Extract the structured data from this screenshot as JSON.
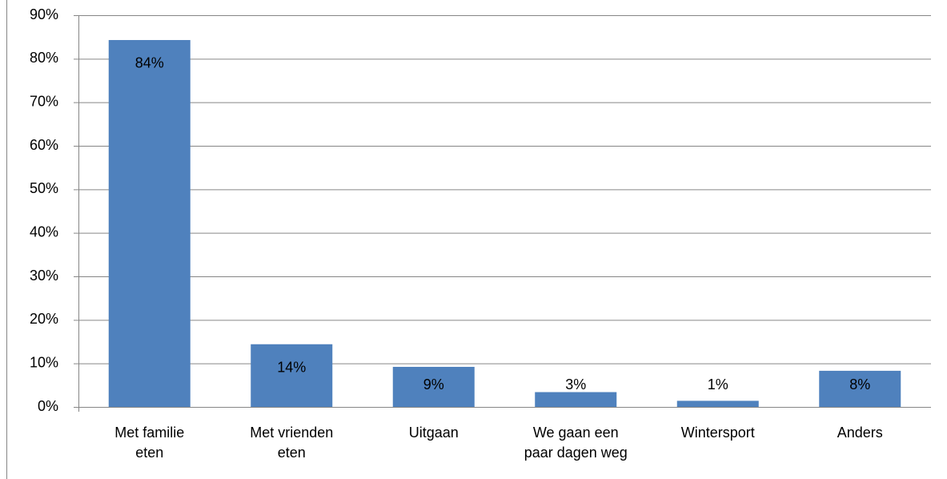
{
  "chart_data": {
    "type": "bar",
    "categories": [
      "Met familie eten",
      "Met vrienden eten",
      "Uitgaan",
      "We gaan een paar dagen weg",
      "Wintersport",
      "Anders"
    ],
    "values": [
      84.3,
      14.4,
      9.2,
      3.4,
      1.4,
      8.3
    ],
    "value_labels": [
      "84%",
      "14%",
      "9%",
      "3%",
      "1%",
      "8%"
    ],
    "color": "#4f81bd",
    "ylim": [
      0,
      90
    ],
    "yticks": [
      {
        "value": 0,
        "label": "0%"
      },
      {
        "value": 10,
        "label": "10%"
      },
      {
        "value": 20,
        "label": "20%"
      },
      {
        "value": 30,
        "label": "30%"
      },
      {
        "value": 40,
        "label": "40%"
      },
      {
        "value": 50,
        "label": "50%"
      },
      {
        "value": 60,
        "label": "60%"
      },
      {
        "value": 70,
        "label": "70%"
      },
      {
        "value": 80,
        "label": "80%"
      },
      {
        "value": 90,
        "label": "90%"
      }
    ],
    "grid": true
  }
}
